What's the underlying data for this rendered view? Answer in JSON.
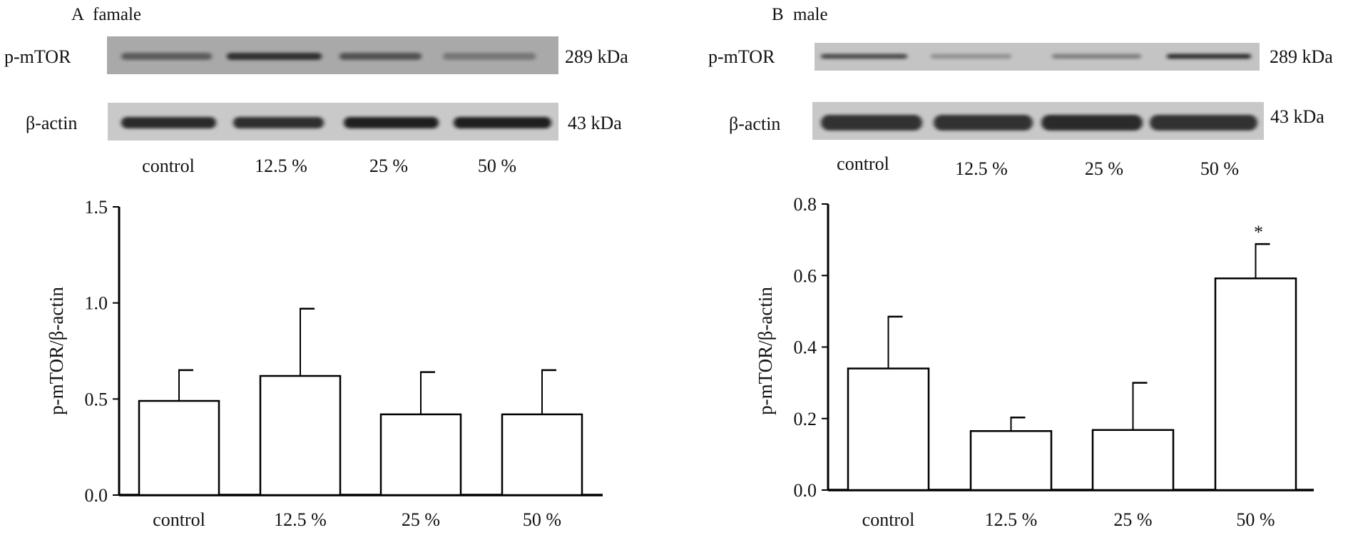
{
  "chart_data": [
    {
      "type": "bar",
      "panel": "A",
      "title": "famale",
      "blot": {
        "rows": [
          {
            "label": "p-mTOR",
            "size": "289 kDa",
            "band_intensity": [
              0.6,
              0.85,
              0.65,
              0.45
            ]
          },
          {
            "label": "β-actin",
            "size": "43 kDa",
            "band_intensity": [
              0.9,
              0.88,
              0.95,
              0.95
            ]
          }
        ],
        "lanes": [
          "control",
          "12.5 %",
          "25 %",
          "50 %"
        ]
      },
      "categories": [
        "control",
        "12.5 %",
        "25 %",
        "50 %"
      ],
      "values": [
        0.49,
        0.62,
        0.42,
        0.42
      ],
      "error": [
        0.16,
        0.35,
        0.22,
        0.23
      ],
      "ylabel": "p-mTOR/β-actin",
      "ylim": [
        0,
        1.5
      ],
      "yticks": [
        "0.0",
        "0.5",
        "1.0",
        "1.5"
      ],
      "annotations": [
        "",
        "",
        "",
        ""
      ],
      "grid": false
    },
    {
      "type": "bar",
      "panel": "B",
      "title": "male",
      "blot": {
        "rows": [
          {
            "label": "p-mTOR",
            "size": "289 kDa",
            "band_intensity": [
              0.7,
              0.3,
              0.4,
              0.85
            ]
          },
          {
            "label": "β-actin",
            "size": "43 kDa",
            "band_intensity": [
              0.85,
              0.85,
              0.9,
              0.85
            ]
          }
        ],
        "lanes": [
          "control",
          "12.5 %",
          "25 %",
          "50 %"
        ]
      },
      "categories": [
        "control",
        "12.5 %",
        "25 %",
        "50 %"
      ],
      "values": [
        0.34,
        0.165,
        0.168,
        0.592
      ],
      "error": [
        0.145,
        0.038,
        0.132,
        0.096
      ],
      "ylabel": "p-mTOR/β-actin",
      "ylim": [
        0,
        0.8
      ],
      "yticks": [
        "0.0",
        "0.2",
        "0.4",
        "0.6",
        "0.8"
      ],
      "annotations": [
        "",
        "",
        "",
        "*"
      ],
      "grid": false
    }
  ]
}
